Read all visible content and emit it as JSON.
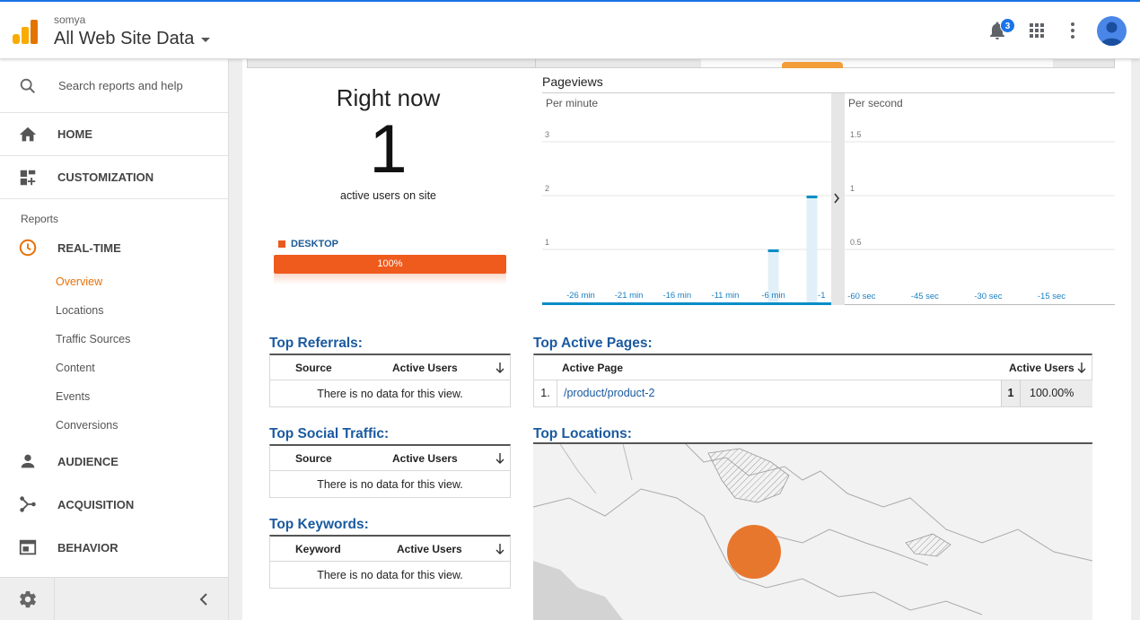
{
  "header": {
    "account_small": "somya",
    "property_view": "All Web Site Data",
    "notification_count": "3"
  },
  "sidebar": {
    "search_placeholder": "Search reports and help",
    "home": "HOME",
    "customization": "CUSTOMIZATION",
    "reports_label": "Reports",
    "realtime": "REAL-TIME",
    "realtime_items": [
      "Overview",
      "Locations",
      "Traffic Sources",
      "Content",
      "Events",
      "Conversions"
    ],
    "audience": "AUDIENCE",
    "acquisition": "ACQUISITION",
    "behavior": "BEHAVIOR"
  },
  "colors": {
    "accent_orange": "#e8710a",
    "link_blue": "#1a5aa0",
    "bar_blue": "#058dc7",
    "desktop_orange": "#ef5b1d"
  },
  "right_now": {
    "title": "Right now",
    "count": "1",
    "subtitle": "active users on site",
    "device_label": "DESKTOP",
    "device_percent_label": "100%",
    "device_share": 1.0
  },
  "pageviews": {
    "title": "Pageviews",
    "per_minute_label": "Per minute",
    "per_second_label": "Per second"
  },
  "chart_data": [
    {
      "type": "bar",
      "title": "Per minute",
      "x_tick_labels": [
        "-26 min",
        "-21 min",
        "-16 min",
        "-11 min",
        "-6 min",
        "-1"
      ],
      "y_tick_labels": [
        "1",
        "2",
        "3"
      ],
      "ylim": [
        0,
        3.5
      ],
      "bars": [
        {
          "minutes_ago": 6,
          "value": 1
        },
        {
          "minutes_ago": 2,
          "value": 2
        }
      ],
      "grid": true
    },
    {
      "type": "bar",
      "title": "Per second",
      "x_tick_labels": [
        "-60 sec",
        "-45 sec",
        "-30 sec",
        "-15 sec"
      ],
      "y_tick_labels": [
        "0.5",
        "1",
        "1.5"
      ],
      "ylim": [
        0,
        1.75
      ],
      "bars": [],
      "grid": true
    }
  ],
  "top_referrals": {
    "title": "Top Referrals:",
    "col1": "Source",
    "col2": "Active Users",
    "empty": "There is no data for this view."
  },
  "top_social": {
    "title": "Top Social Traffic:",
    "col1": "Source",
    "col2": "Active Users",
    "empty": "There is no data for this view."
  },
  "top_keywords": {
    "title": "Top Keywords:",
    "col1": "Keyword",
    "col2": "Active Users",
    "empty": "There is no data for this view."
  },
  "top_pages": {
    "title": "Top Active Pages:",
    "col1": "Active Page",
    "col2": "Active Users",
    "rows": [
      {
        "index": "1.",
        "page": "/product/product-2",
        "users": "1",
        "percent": "100.00%"
      }
    ]
  },
  "top_locations": {
    "title": "Top Locations:"
  }
}
